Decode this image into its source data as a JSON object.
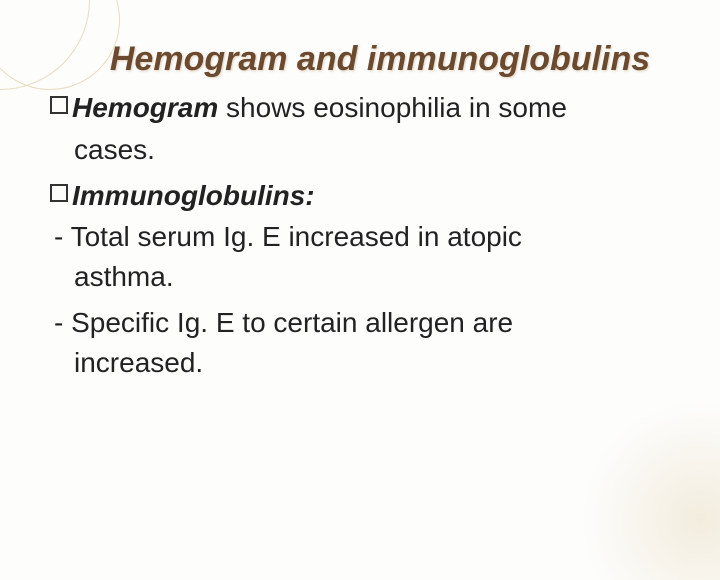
{
  "slide": {
    "title": "Hemogram and immunoglobulins",
    "bullet1_bold": "Hemogram",
    "bullet1_rest": " shows eosinophilia in some",
    "bullet1_line2": "cases.",
    "bullet2_bold": "Immunoglobulins:",
    "dash1_line1": "-  Total serum Ig. E increased in atopic",
    "dash1_line2": "asthma.",
    "dash2_line1": "-  Specific Ig. E to certain allergen are",
    "dash2_line2": "increased."
  },
  "style": {
    "title_color": "#6b4a2f",
    "title_fontsize": 34,
    "body_fontsize": 28,
    "body_color": "#222222",
    "background_color": "#fdfdfc",
    "decoration_color": "#e8dcc0"
  }
}
